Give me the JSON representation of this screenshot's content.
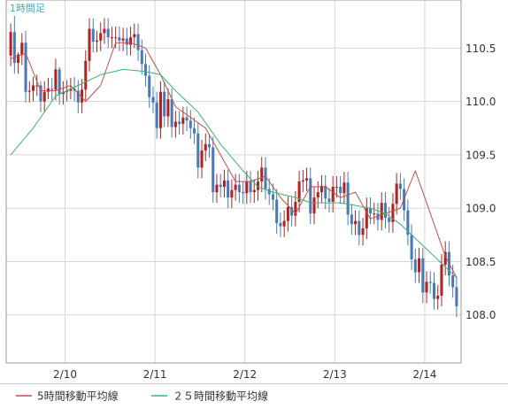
{
  "timeframe_label": "1時間足",
  "chart_data": {
    "type": "candlestick",
    "title": "",
    "xlabel": "",
    "ylabel": "",
    "x_ticks": [
      "2/10",
      "2/11",
      "2/12",
      "2/13",
      "2/14"
    ],
    "y_ticks": [
      108.0,
      108.5,
      109.0,
      109.5,
      110.0,
      110.5
    ],
    "y_tick_labels": [
      "108.0",
      "108.5",
      "109.0",
      "109.5",
      "110.0",
      "110.5"
    ],
    "ylim": [
      107.55,
      110.95
    ],
    "grid": true,
    "legend_position": "bottom",
    "up_color": "#b22222",
    "down_color": "#4a7ab5",
    "series": [
      {
        "name": "5時間移動平均線",
        "color": "#c0504d",
        "x": [
          0,
          4,
          8,
          12,
          16,
          20,
          24,
          28,
          32,
          36,
          40,
          44,
          48,
          52,
          56,
          60,
          64,
          68,
          72,
          76,
          80,
          84,
          88,
          92,
          96,
          100,
          104,
          108,
          112,
          116,
          119
        ],
        "values": [
          110.4,
          110.45,
          110.1,
          110.1,
          110.15,
          110.0,
          110.15,
          110.55,
          110.55,
          110.5,
          110.25,
          109.95,
          109.85,
          109.75,
          109.5,
          109.25,
          109.25,
          109.3,
          109.1,
          108.95,
          109.2,
          109.2,
          109.1,
          109.15,
          108.9,
          108.95,
          109.0,
          109.35,
          108.95,
          108.55,
          108.35
        ]
      },
      {
        "name": "２５時間移動平均線",
        "color": "#3cb371",
        "x": [
          0,
          6,
          12,
          18,
          24,
          30,
          36,
          40,
          44,
          50,
          56,
          62,
          66,
          70,
          76,
          80,
          84,
          88,
          96,
          100,
          104,
          110,
          116,
          119
        ],
        "values": [
          109.5,
          109.75,
          110.05,
          110.15,
          110.25,
          110.3,
          110.28,
          110.25,
          110.1,
          109.9,
          109.6,
          109.35,
          109.2,
          109.15,
          109.1,
          109.05,
          109.05,
          109.05,
          109.0,
          108.95,
          108.85,
          108.65,
          108.45,
          108.35
        ]
      }
    ],
    "candles": {
      "open": [
        110.43,
        110.65,
        110.36,
        110.44,
        110.55,
        110.09,
        110.1,
        110.15,
        110.15,
        110.0,
        110.09,
        110.12,
        110.11,
        110.3,
        110.07,
        110.09,
        110.1,
        110.12,
        110.1,
        109.99,
        110.11,
        110.38,
        110.68,
        110.56,
        110.57,
        110.64,
        110.68,
        110.6,
        110.6,
        110.6,
        110.57,
        110.59,
        110.53,
        110.6,
        110.63,
        110.48,
        110.35,
        110.24,
        110.04,
        109.99,
        109.75,
        110.09,
        109.86,
        110.02,
        109.76,
        109.81,
        109.79,
        109.85,
        109.82,
        109.75,
        109.7,
        109.38,
        109.54,
        109.6,
        109.57,
        109.15,
        109.22,
        109.2,
        109.26,
        109.1,
        109.17,
        109.22,
        109.15,
        109.14,
        109.25,
        109.15,
        109.17,
        109.25,
        109.38,
        109.18,
        109.13,
        109.08,
        108.86,
        108.83,
        108.88,
        109.01,
        108.93,
        109.06,
        109.25,
        109.26,
        109.28,
        108.95,
        109.1,
        109.15,
        109.21,
        109.09,
        109.06,
        109.2,
        109.2,
        109.14,
        109.24,
        108.94,
        108.85,
        108.88,
        108.75,
        108.81,
        109.0,
        108.95,
        108.95,
        108.89,
        109.05,
        108.91,
        108.87,
        109.04,
        109.23,
        109.18,
        108.98,
        108.75,
        108.52,
        108.4,
        108.53,
        108.21,
        108.31,
        108.3,
        108.15,
        108.18,
        108.47,
        108.59,
        108.37,
        108.26
      ],
      "close": [
        110.65,
        110.36,
        110.44,
        110.55,
        110.09,
        110.1,
        110.15,
        110.15,
        110.0,
        110.09,
        110.12,
        110.11,
        110.3,
        110.07,
        110.09,
        110.1,
        110.12,
        110.1,
        109.99,
        110.11,
        110.38,
        110.68,
        110.56,
        110.57,
        110.64,
        110.68,
        110.6,
        110.6,
        110.6,
        110.57,
        110.59,
        110.53,
        110.6,
        110.63,
        110.48,
        110.35,
        110.24,
        110.04,
        109.99,
        109.75,
        110.09,
        109.86,
        110.02,
        109.76,
        109.81,
        109.79,
        109.85,
        109.82,
        109.75,
        109.7,
        109.38,
        109.54,
        109.6,
        109.57,
        109.15,
        109.22,
        109.2,
        109.26,
        109.1,
        109.17,
        109.22,
        109.15,
        109.14,
        109.25,
        109.15,
        109.17,
        109.25,
        109.38,
        109.18,
        109.13,
        109.08,
        108.86,
        108.83,
        108.88,
        109.01,
        108.93,
        109.06,
        109.25,
        109.26,
        109.28,
        108.95,
        109.1,
        109.15,
        109.21,
        109.09,
        109.06,
        109.2,
        109.2,
        109.14,
        109.24,
        108.94,
        108.85,
        108.88,
        108.75,
        108.81,
        109.0,
        108.95,
        108.95,
        108.89,
        109.05,
        108.91,
        108.87,
        109.04,
        109.23,
        109.18,
        108.98,
        108.75,
        108.52,
        108.4,
        108.53,
        108.21,
        108.31,
        108.3,
        108.15,
        108.18,
        108.47,
        108.59,
        108.37,
        108.26,
        108.08
      ],
      "high": [
        110.73,
        110.8,
        110.46,
        110.64,
        110.66,
        110.19,
        110.23,
        110.25,
        110.19,
        110.19,
        110.22,
        110.22,
        110.4,
        110.32,
        110.19,
        110.2,
        110.22,
        110.23,
        110.2,
        110.21,
        110.48,
        110.78,
        110.78,
        110.66,
        110.74,
        110.78,
        110.78,
        110.7,
        110.7,
        110.7,
        110.69,
        110.69,
        110.7,
        110.73,
        110.73,
        110.58,
        110.45,
        110.34,
        110.14,
        110.09,
        110.19,
        110.19,
        110.12,
        110.12,
        109.91,
        109.91,
        109.95,
        109.95,
        109.92,
        109.85,
        109.8,
        109.64,
        109.7,
        109.7,
        109.67,
        109.32,
        109.32,
        109.36,
        109.36,
        109.27,
        109.32,
        109.32,
        109.25,
        109.35,
        109.35,
        109.27,
        109.35,
        109.48,
        109.48,
        109.28,
        109.23,
        109.18,
        108.96,
        108.98,
        109.11,
        109.11,
        109.16,
        109.35,
        109.36,
        109.38,
        109.38,
        109.2,
        109.25,
        109.31,
        109.31,
        109.19,
        109.3,
        109.3,
        109.3,
        109.34,
        109.34,
        109.04,
        108.98,
        108.98,
        108.91,
        109.1,
        109.1,
        109.05,
        109.05,
        109.15,
        109.15,
        109.01,
        109.14,
        109.33,
        109.33,
        109.28,
        109.08,
        108.85,
        108.62,
        108.63,
        108.63,
        108.41,
        108.41,
        108.4,
        108.28,
        108.57,
        108.69,
        108.69,
        108.47,
        108.36
      ],
      "low": [
        110.33,
        110.26,
        110.26,
        110.34,
        109.99,
        109.99,
        110.0,
        110.05,
        109.9,
        109.9,
        110.02,
        110.01,
        110.01,
        109.97,
        109.97,
        110.0,
        110.02,
        110.0,
        109.89,
        109.89,
        110.01,
        110.28,
        110.46,
        110.46,
        110.47,
        110.54,
        110.5,
        110.5,
        110.5,
        110.47,
        110.47,
        110.43,
        110.43,
        110.5,
        110.38,
        110.25,
        110.14,
        109.94,
        109.89,
        109.65,
        109.65,
        109.76,
        109.76,
        109.66,
        109.66,
        109.69,
        109.69,
        109.72,
        109.65,
        109.6,
        109.28,
        109.28,
        109.44,
        109.47,
        109.05,
        109.05,
        109.1,
        109.1,
        109.0,
        109.0,
        109.07,
        109.05,
        109.04,
        109.04,
        109.05,
        109.05,
        109.07,
        109.15,
        109.08,
        109.03,
        108.98,
        108.76,
        108.73,
        108.73,
        108.78,
        108.83,
        108.83,
        108.96,
        109.15,
        109.16,
        108.85,
        108.85,
        109.0,
        109.05,
        108.99,
        108.96,
        108.96,
        109.1,
        109.04,
        109.04,
        108.84,
        108.75,
        108.75,
        108.65,
        108.65,
        108.71,
        108.85,
        108.85,
        108.79,
        108.79,
        108.81,
        108.77,
        108.77,
        108.94,
        109.08,
        108.88,
        108.65,
        108.42,
        108.3,
        108.3,
        108.11,
        108.11,
        108.2,
        108.05,
        108.05,
        108.08,
        108.37,
        108.27,
        108.16,
        107.98
      ]
    }
  }
}
